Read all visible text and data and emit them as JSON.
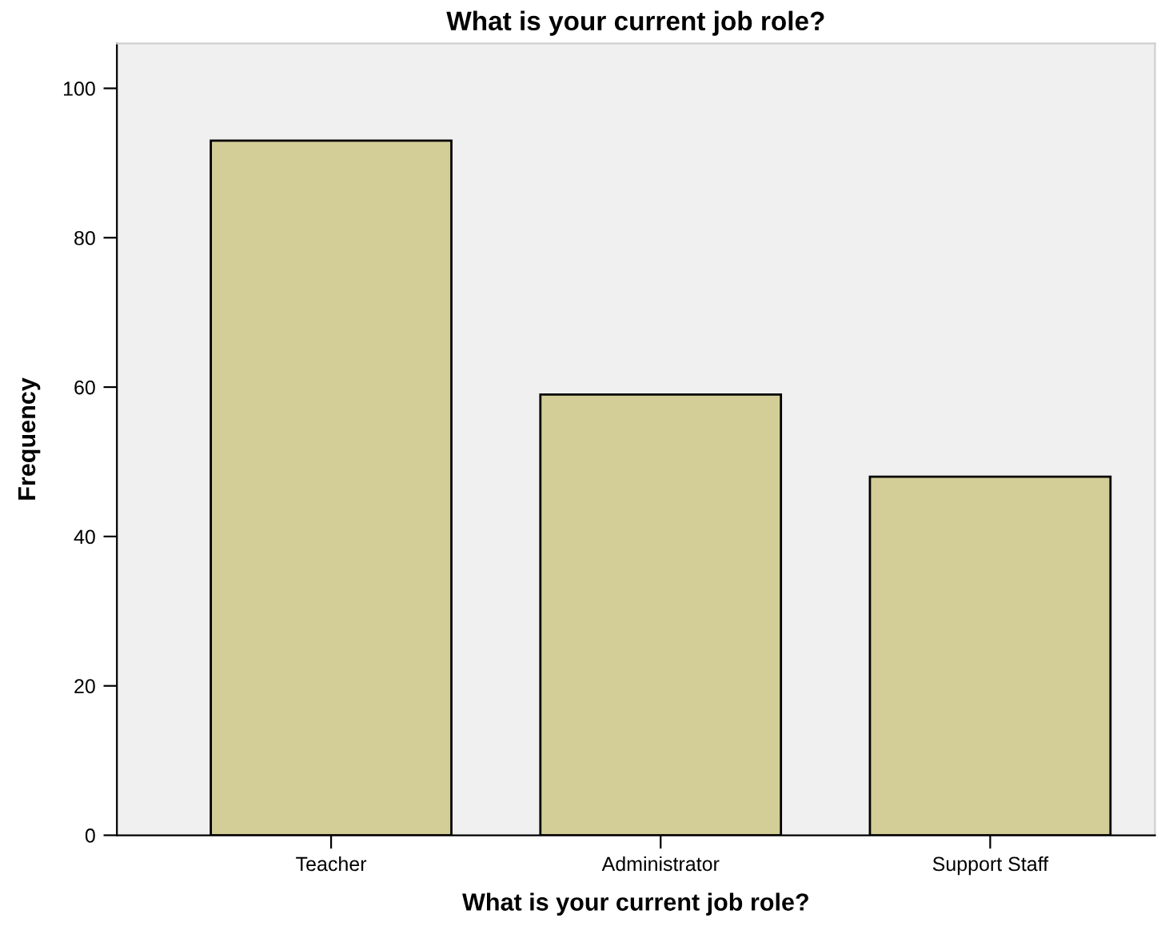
{
  "chart_data": {
    "type": "bar",
    "title": "What is your current job role?",
    "xlabel": "What is your current job role?",
    "ylabel": "Frequency",
    "categories": [
      "Teacher",
      "Administrator",
      "Support Staff"
    ],
    "values": [
      93,
      59,
      48
    ],
    "color": "#d3ce97",
    "ylim": [
      0,
      106
    ],
    "yticks": [
      0,
      20,
      40,
      60,
      80,
      100
    ],
    "grid": false,
    "legend": false
  }
}
